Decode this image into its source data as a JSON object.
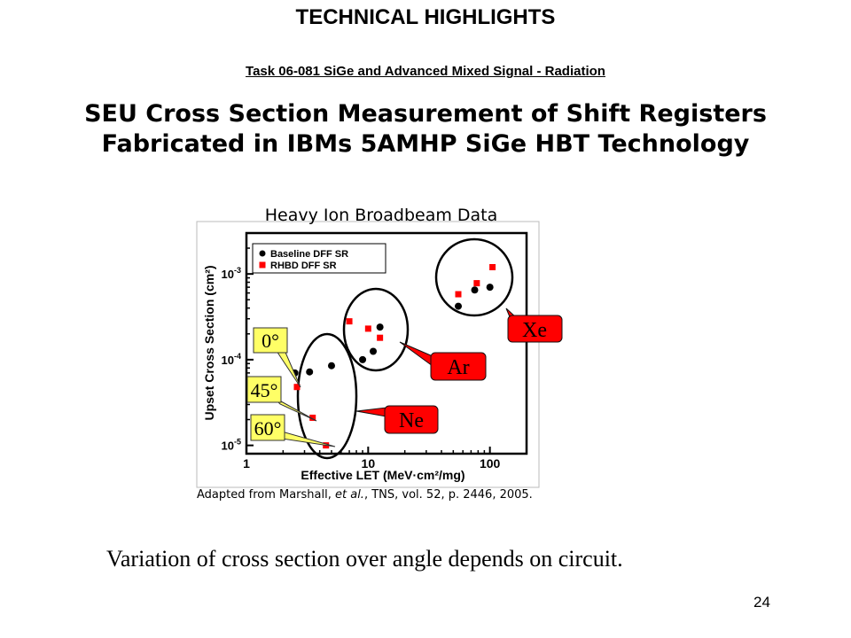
{
  "slide": {
    "title": "TECHNICAL HIGHLIGHTS",
    "subtitle": "Task 06-081 SiGe and Advanced Mixed Signal - Radiation",
    "heading_line1": "SEU Cross Section Measurement of Shift Registers",
    "heading_line2": "Fabricated in IBMs 5AMHP SiGe HBT Technology",
    "caption": "Variation of cross section over angle depends on circuit.",
    "page_number": "24"
  },
  "chart_data": {
    "type": "scatter",
    "title": "Heavy Ion Broadbeam Data",
    "xlabel": "Effective LET (MeV·cm²/mg)",
    "ylabel": "Upset Cross Section (cm²)",
    "x_scale": "log",
    "y_scale": "log",
    "xlim": [
      1,
      200
    ],
    "ylim": [
      8e-06,
      0.003
    ],
    "x_ticks": [
      {
        "value": 1,
        "label": "1"
      },
      {
        "value": 10,
        "label": "10"
      },
      {
        "value": 100,
        "label": "100"
      }
    ],
    "y_ticks": [
      {
        "value": 1e-05,
        "label": "10-5"
      },
      {
        "value": 0.0001,
        "label": "10-4"
      },
      {
        "value": 0.001,
        "label": "10-3"
      }
    ],
    "legend_position": "top-left",
    "series": [
      {
        "name": "Baseline DFF SR",
        "marker": "circle",
        "color": "#000000",
        "points": [
          [
            2.5,
            7e-05
          ],
          [
            3.3,
            7.2e-05
          ],
          [
            5.0,
            8.5e-05
          ],
          [
            9.0,
            0.0001
          ],
          [
            11.0,
            0.000125
          ],
          [
            12.5,
            0.00024
          ],
          [
            55.0,
            0.00042
          ],
          [
            75.0,
            0.00065
          ],
          [
            100.0,
            0.0007
          ]
        ]
      },
      {
        "name": "RHBD DFF SR",
        "marker": "square",
        "color": "#ff0000",
        "points": [
          [
            2.6,
            4.8e-05
          ],
          [
            3.5,
            2.1e-05
          ],
          [
            4.5,
            1e-05
          ],
          [
            7.0,
            0.00028
          ],
          [
            10.0,
            0.00023
          ],
          [
            12.5,
            0.00018
          ],
          [
            55.0,
            0.00058
          ],
          [
            78.0,
            0.00078
          ],
          [
            105.0,
            0.0012
          ]
        ]
      }
    ],
    "annotations": {
      "ions": [
        {
          "label": "Xe"
        },
        {
          "label": "Ar"
        },
        {
          "label": "Ne"
        }
      ],
      "angles": [
        {
          "label": "0°"
        },
        {
          "label": "45°"
        },
        {
          "label": "60°"
        }
      ],
      "ion_callout_color": "#ff0000",
      "angle_callout_color": "#ffff66"
    },
    "source_prefix": "Adapted from Marshall, ",
    "source_etal": "et al.",
    "source_suffix": ", TNS, vol. 52, p. 2446, 2005."
  }
}
